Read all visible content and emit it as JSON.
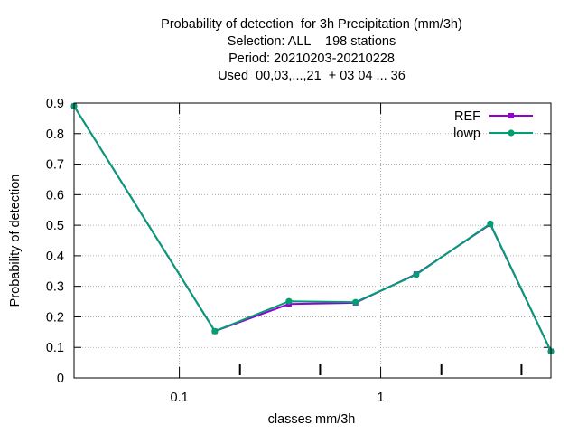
{
  "title_lines": [
    "Probability of detection  for 3h Precipitation (mm/3h)",
    "Selection: ALL    198 stations",
    "Period: 20210203-20210228",
    "Used  00,03,...,21  + 03 04 ... 36"
  ],
  "chart_data": {
    "type": "line",
    "title": "Probability of detection  for 3h Precipitation (mm/3h)",
    "xlabel": "classes mm/3h",
    "ylabel": "Probability of detection",
    "x_scale": "log",
    "ylim": [
      0,
      0.9
    ],
    "yticks": [
      "0",
      "0.1",
      "0.2",
      "0.3",
      "0.4",
      "0.5",
      "0.6",
      "0.7",
      "0.8",
      "0.9"
    ],
    "xticks": [
      "0.1",
      "1"
    ],
    "grid": true,
    "legend_position": "top-right",
    "x": [
      0.03,
      0.15,
      0.35,
      0.75,
      1.5,
      3.5,
      7.0
    ],
    "series": [
      {
        "name": "REF",
        "color": "#9400d3",
        "values": [
          0.89,
          0.153,
          0.242,
          0.246,
          0.34,
          0.503,
          0.087
        ]
      },
      {
        "name": "lowp",
        "color": "#009e73",
        "values": [
          0.89,
          0.153,
          0.251,
          0.248,
          0.338,
          0.505,
          0.087
        ]
      }
    ]
  }
}
